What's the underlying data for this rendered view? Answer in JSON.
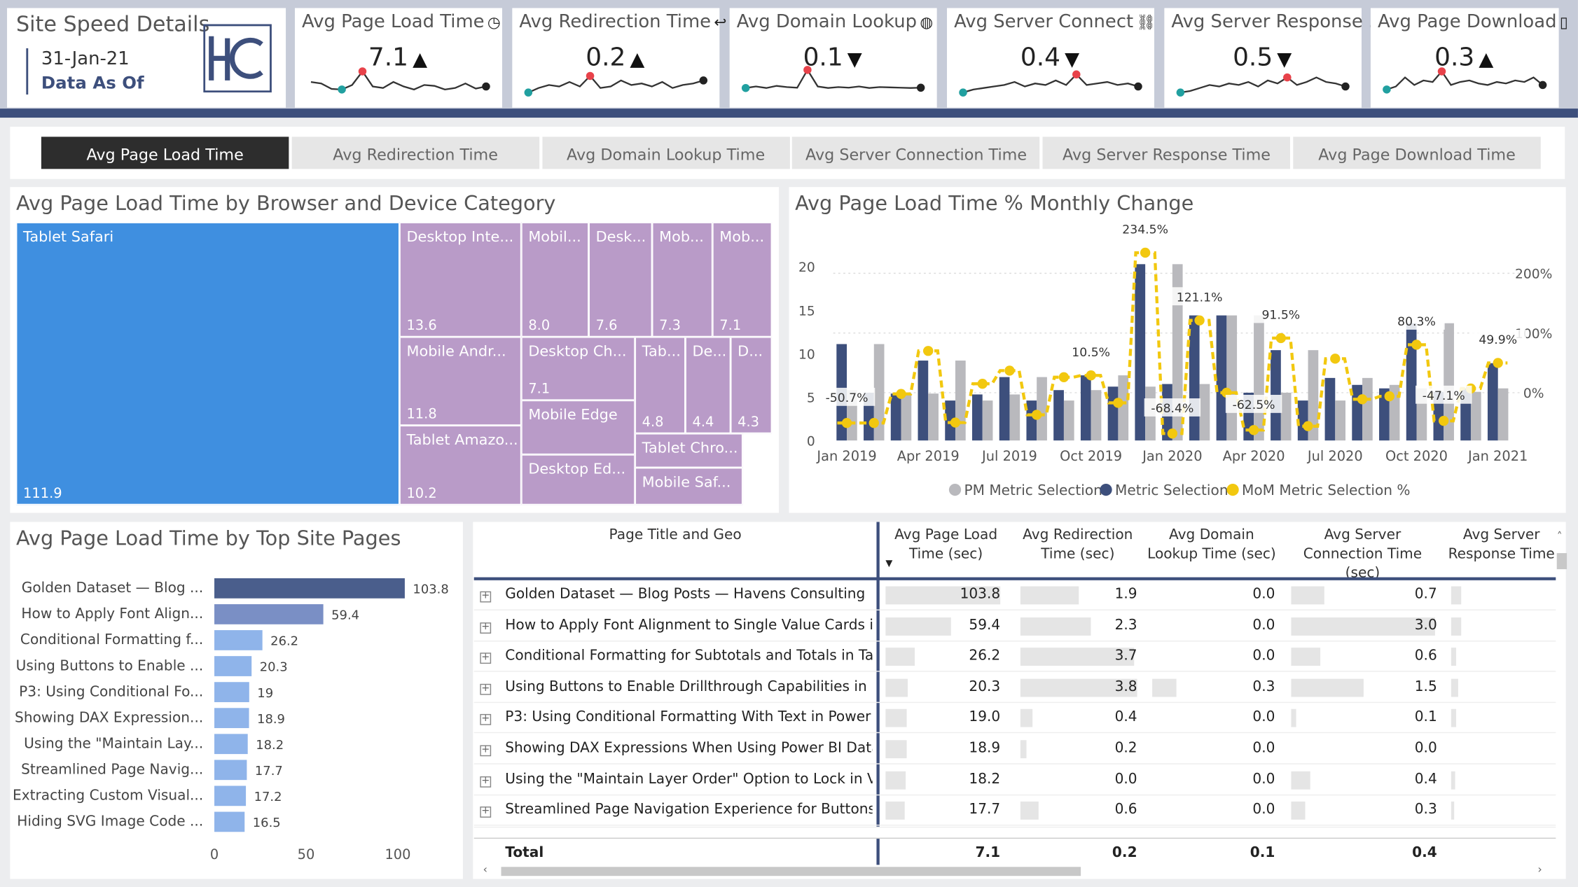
{
  "header": {
    "title": "Site Speed Details",
    "date": "31-Jan-21",
    "data_as_of": "Data As Of",
    "logo_text": "HC"
  },
  "kpis": [
    {
      "title": "Avg Page Load Time",
      "icon": "gauge-icon",
      "value": "7.1",
      "trend": "up"
    },
    {
      "title": "Avg Redirection Time",
      "icon": "return-arrow-icon",
      "value": "0.2",
      "trend": "up"
    },
    {
      "title": "Avg Domain Lookup",
      "icon": "globe-icon",
      "value": "0.1",
      "trend": "down"
    },
    {
      "title": "Avg Server Connect",
      "icon": "link-icon",
      "value": "0.4",
      "trend": "down"
    },
    {
      "title": "Avg Server Response ...",
      "icon": "",
      "value": "0.5",
      "trend": "down"
    },
    {
      "title": "Avg Page Download",
      "icon": "document-icon",
      "value": "0.3",
      "trend": "up"
    }
  ],
  "tabs": [
    {
      "label": "Avg Page Load Time",
      "active": true
    },
    {
      "label": "Avg Redirection Time",
      "active": false
    },
    {
      "label": "Avg Domain Lookup Time",
      "active": false
    },
    {
      "label": "Avg Server Connection Time",
      "active": false
    },
    {
      "label": "Avg Server Response Time",
      "active": false
    },
    {
      "label": "Avg Page Download Time",
      "active": false
    }
  ],
  "treemap": {
    "title": "Avg Page Load Time by Browser and Device Category",
    "items": [
      {
        "name": "Tablet Safari",
        "value": "111.9"
      },
      {
        "name": "Desktop Inte...",
        "value": "13.6"
      },
      {
        "name": "Mobil...",
        "value": "8.0"
      },
      {
        "name": "Desk...",
        "value": "7.6"
      },
      {
        "name": "Mob...",
        "value": "7.3"
      },
      {
        "name": "Mob...",
        "value": "7.1"
      },
      {
        "name": "Mobile Andr...",
        "value": "11.8"
      },
      {
        "name": "Desktop Ch...",
        "value": "7.1"
      },
      {
        "name": "Tab...",
        "value": "4.8"
      },
      {
        "name": "De...",
        "value": "4.4"
      },
      {
        "name": "D...",
        "value": "4.3"
      },
      {
        "name": "Tablet Amazo...",
        "value": "10.2"
      },
      {
        "name": "Mobile Edge",
        "value": ""
      },
      {
        "name": "Tablet Chro...",
        "value": ""
      },
      {
        "name": "Desktop Ed...",
        "value": ""
      },
      {
        "name": "Mobile Saf...",
        "value": ""
      }
    ]
  },
  "monthly_chart": {
    "title": "Avg Page Load Time % Monthly Change",
    "left_ticks": [
      "0",
      "5",
      "10",
      "15",
      "20"
    ],
    "right_ticks": [
      "0%",
      "100%",
      "200%"
    ],
    "x_ticks": [
      "Jan 2019",
      "Apr 2019",
      "Jul 2019",
      "Oct 2019",
      "Jan 2020",
      "Apr 2020",
      "Jul 2020",
      "Oct 2020",
      "Jan 2021"
    ],
    "legend": [
      "PM Metric Selection",
      "Metric Selection",
      "MoM Metric Selection %"
    ],
    "annotations": [
      "-50.7%",
      "10.5%",
      "234.5%",
      "-68.4%",
      "121.1%",
      "91.5%",
      "-62.5%",
      "80.3%",
      "-47.1%",
      "49.9%"
    ]
  },
  "chart_data": [
    {
      "type": "bar",
      "title": "Avg Page Load Time % Monthly Change",
      "categories": [
        "Jan 2019",
        "Feb 2019",
        "Mar 2019",
        "Apr 2019",
        "May 2019",
        "Jun 2019",
        "Jul 2019",
        "Aug 2019",
        "Sep 2019",
        "Oct 2019",
        "Nov 2019",
        "Dec 2019",
        "Jan 2020",
        "Feb 2020",
        "Mar 2020",
        "Apr 2020",
        "May 2020",
        "Jun 2020",
        "Jul 2020",
        "Aug 2020",
        "Sep 2020",
        "Oct 2020",
        "Nov 2020",
        "Dec 2020",
        "Jan 2021"
      ],
      "series": [
        {
          "name": "PM Metric Selection",
          "values": [
            5.8,
            11.1,
            5.5,
            5.4,
            9.2,
            4.6,
            5.3,
            7.3,
            4.6,
            5.8,
            7.5,
            6.2,
            20.3,
            6.5,
            14.4,
            14.4,
            5.5,
            10.4,
            4.6,
            7.2,
            6.4,
            6.0,
            13.5,
            5.6,
            6.0
          ]
        },
        {
          "name": "Metric Selection",
          "values": [
            11.1,
            5.5,
            5.4,
            9.2,
            4.6,
            5.3,
            7.3,
            4.6,
            5.8,
            7.5,
            6.2,
            20.3,
            6.5,
            14.4,
            14.4,
            5.5,
            10.4,
            4.6,
            7.2,
            6.4,
            6.0,
            13.5,
            5.6,
            6.0,
            8.9
          ]
        },
        {
          "name": "MoM Metric Selection %",
          "values": [
            -50.7,
            -50.7,
            -2,
            70,
            -50,
            15,
            37,
            -37,
            26,
            29,
            -17,
            234.5,
            -68.4,
            121.1,
            0,
            -62.5,
            91.5,
            -56,
            57,
            -11,
            -6,
            80.3,
            -47.1,
            7,
            49.9
          ]
        }
      ],
      "left_axis": [
        0,
        22
      ],
      "right_axis": [
        -80,
        240
      ],
      "legend_position": "bottom"
    },
    {
      "type": "bar",
      "title": "Avg Page Load Time by Top Site Pages",
      "categories": [
        "Golden Dataset — Blog ...",
        "How to Apply Font Align...",
        "Conditional Formatting f...",
        "Using Buttons to Enable ...",
        "P3: Using Conditional Fo...",
        "Showing DAX Expression...",
        "Using the \"Maintain Lay...",
        "Streamlined Page Navig...",
        "Extracting Custom Visual...",
        "Hiding SVG Image Code ..."
      ],
      "values": [
        103.8,
        59.4,
        26.2,
        20.3,
        19.0,
        18.9,
        18.2,
        17.7,
        17.2,
        16.5
      ],
      "x_ticks": [
        "0",
        "50",
        "100"
      ],
      "xlim": [
        0,
        113
      ]
    }
  ],
  "sparklines": [
    [
      0.55,
      0.5,
      0.32,
      0.3,
      0.45,
      0.9,
      0.4,
      0.35,
      0.55,
      0.4,
      0.3,
      0.45,
      0.42,
      0.3,
      0.35,
      0.5,
      0.33,
      0.4
    ],
    [
      0.2,
      0.35,
      0.45,
      0.4,
      0.55,
      0.4,
      0.75,
      0.35,
      0.4,
      0.6,
      0.45,
      0.5,
      0.4,
      0.55,
      0.35,
      0.45,
      0.5,
      0.6
    ],
    [
      0.35,
      0.4,
      0.35,
      0.42,
      0.38,
      0.36,
      0.95,
      0.4,
      0.35,
      0.38,
      0.36,
      0.4,
      0.35,
      0.38,
      0.37,
      0.36,
      0.35,
      0.36
    ],
    [
      0.2,
      0.3,
      0.35,
      0.4,
      0.45,
      0.55,
      0.4,
      0.5,
      0.45,
      0.6,
      0.45,
      0.8,
      0.45,
      0.5,
      0.55,
      0.45,
      0.5,
      0.4
    ],
    [
      0.2,
      0.25,
      0.35,
      0.45,
      0.4,
      0.5,
      0.45,
      0.55,
      0.4,
      0.6,
      0.5,
      0.7,
      0.45,
      0.55,
      0.7,
      0.55,
      0.5,
      0.4
    ],
    [
      0.3,
      0.4,
      0.7,
      0.45,
      0.6,
      0.55,
      0.9,
      0.45,
      0.55,
      0.6,
      0.5,
      0.45,
      0.55,
      0.5,
      0.6,
      0.55,
      0.7,
      0.45
    ]
  ],
  "top_pages": {
    "title": "Avg Page Load Time by Top Site Pages"
  },
  "table": {
    "headers": [
      "Page Title and Geo",
      "Avg Page Load Time (sec)",
      "Avg Redirection Time (sec)",
      "Avg Domain Lookup Time (sec)",
      "Avg Server Connection Time (sec)",
      "Avg Server Response Time"
    ],
    "rows": [
      {
        "title": "Golden Dataset — Blog Posts — Havens Consulting",
        "c1": "103.8",
        "c2": "1.9",
        "c3": "0.0",
        "c4": "0.7"
      },
      {
        "title": "How to Apply Font Alignment to Single Value Cards in...",
        "c1": "59.4",
        "c2": "2.3",
        "c3": "0.0",
        "c4": "3.0"
      },
      {
        "title": "Conditional Formatting for Subtotals and Totals in Tab...",
        "c1": "26.2",
        "c2": "3.7",
        "c3": "0.0",
        "c4": "0.6"
      },
      {
        "title": "Using Buttons to Enable Drillthrough Capabilities in P...",
        "c1": "20.3",
        "c2": "3.8",
        "c3": "0.3",
        "c4": "1.5"
      },
      {
        "title": "P3: Using Conditional Formatting With Text in Power B...",
        "c1": "19.0",
        "c2": "0.4",
        "c3": "0.0",
        "c4": "0.1"
      },
      {
        "title": "Showing DAX Expressions When Using Power BI Datas...",
        "c1": "18.9",
        "c2": "0.2",
        "c3": "0.0",
        "c4": "0.0"
      },
      {
        "title": "Using the \"Maintain Layer Order\" Option to Lock in Vi...",
        "c1": "18.2",
        "c2": "0.0",
        "c3": "0.0",
        "c4": "0.4"
      },
      {
        "title": "Streamlined Page Navigation Experience for Buttons i...",
        "c1": "17.7",
        "c2": "0.6",
        "c3": "0.0",
        "c4": "0.3"
      }
    ],
    "total": {
      "label": "Total",
      "c1": "7.1",
      "c2": "0.2",
      "c3": "0.1",
      "c4": "0.4"
    }
  }
}
